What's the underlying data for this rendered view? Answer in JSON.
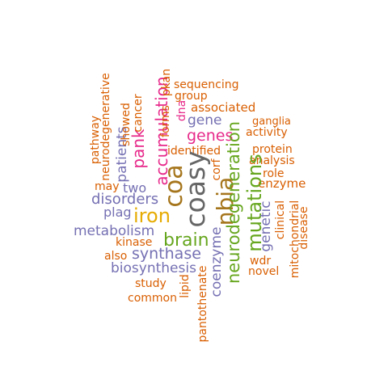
{
  "colors": {
    "orange": "#D95F02",
    "purple": "#7570B3",
    "magenta": "#E7298A",
    "green": "#66A61E",
    "gold": "#E6AB02",
    "brown": "#A6761D",
    "gray": "#666666"
  },
  "words": [
    {
      "text": "sequencing",
      "color": "#D95F02",
      "orientation": "horizontal"
    },
    {
      "text": "group",
      "color": "#D95F02",
      "orientation": "horizontal"
    },
    {
      "text": "associated",
      "color": "#D95F02",
      "orientation": "horizontal"
    },
    {
      "text": "gene",
      "color": "#7570B3",
      "orientation": "horizontal"
    },
    {
      "text": "ganglia",
      "color": "#D95F02",
      "orientation": "horizontal"
    },
    {
      "text": "activity",
      "color": "#D95F02",
      "orientation": "horizontal"
    },
    {
      "text": "genes",
      "color": "#E7298A",
      "orientation": "horizontal"
    },
    {
      "text": "identified",
      "color": "#D95F02",
      "orientation": "horizontal"
    },
    {
      "text": "protein",
      "color": "#D95F02",
      "orientation": "horizontal"
    },
    {
      "text": "analysis",
      "color": "#D95F02",
      "orientation": "horizontal"
    },
    {
      "text": "role",
      "color": "#D95F02",
      "orientation": "horizontal"
    },
    {
      "text": "enzyme",
      "color": "#D95F02",
      "orientation": "horizontal"
    },
    {
      "text": "may",
      "color": "#D95F02",
      "orientation": "horizontal"
    },
    {
      "text": "two",
      "color": "#7570B3",
      "orientation": "horizontal"
    },
    {
      "text": "disorders",
      "color": "#7570B3",
      "orientation": "horizontal"
    },
    {
      "text": "plag",
      "color": "#7570B3",
      "orientation": "horizontal"
    },
    {
      "text": "iron",
      "color": "#E6AB02",
      "orientation": "horizontal"
    },
    {
      "text": "metabolism",
      "color": "#7570B3",
      "orientation": "horizontal"
    },
    {
      "text": "kinase",
      "color": "#D95F02",
      "orientation": "horizontal"
    },
    {
      "text": "brain",
      "color": "#66A61E",
      "orientation": "horizontal"
    },
    {
      "text": "also",
      "color": "#D95F02",
      "orientation": "horizontal"
    },
    {
      "text": "synthase",
      "color": "#7570B3",
      "orientation": "horizontal"
    },
    {
      "text": "biosynthesis",
      "color": "#7570B3",
      "orientation": "horizontal"
    },
    {
      "text": "study",
      "color": "#D95F02",
      "orientation": "horizontal"
    },
    {
      "text": "common",
      "color": "#D95F02",
      "orientation": "horizontal"
    },
    {
      "text": "wdr",
      "color": "#D95F02",
      "orientation": "horizontal"
    },
    {
      "text": "novel",
      "color": "#D95F02",
      "orientation": "horizontal"
    },
    {
      "text": "pathway",
      "color": "#D95F02",
      "orientation": "vertical"
    },
    {
      "text": "neurodegenerative",
      "color": "#D95F02",
      "orientation": "vertical"
    },
    {
      "text": "patients",
      "color": "#7570B3",
      "orientation": "vertical"
    },
    {
      "text": "showed",
      "color": "#D95F02",
      "orientation": "vertical"
    },
    {
      "text": "pank",
      "color": "#E7298A",
      "orientation": "vertical"
    },
    {
      "text": "cancer",
      "color": "#D95F02",
      "orientation": "vertical"
    },
    {
      "text": "accumulation",
      "color": "#E7298A",
      "orientation": "vertical"
    },
    {
      "text": "forms",
      "color": "#D95F02",
      "orientation": "vertical"
    },
    {
      "text": "pkan",
      "color": "#D95F02",
      "orientation": "vertical"
    },
    {
      "text": "dna",
      "color": "#E7298A",
      "orientation": "vertical"
    },
    {
      "text": "coa",
      "color": "#A6761D",
      "orientation": "vertical"
    },
    {
      "text": "coasy",
      "color": "#666666",
      "orientation": "vertical"
    },
    {
      "text": "corf",
      "color": "#D95F02",
      "orientation": "vertical"
    },
    {
      "text": "nbia",
      "color": "#A6761D",
      "orientation": "vertical"
    },
    {
      "text": "neurodegeneration",
      "color": "#66A61E",
      "orientation": "vertical"
    },
    {
      "text": "mutations",
      "color": "#66A61E",
      "orientation": "vertical"
    },
    {
      "text": "coenzyme",
      "color": "#7570B3",
      "orientation": "vertical"
    },
    {
      "text": "genetic",
      "color": "#7570B3",
      "orientation": "vertical"
    },
    {
      "text": "clinical",
      "color": "#D95F02",
      "orientation": "vertical"
    },
    {
      "text": "mitochondrial",
      "color": "#D95F02",
      "orientation": "vertical"
    },
    {
      "text": "disease",
      "color": "#D95F02",
      "orientation": "vertical"
    },
    {
      "text": "lipid",
      "color": "#D95F02",
      "orientation": "vertical"
    },
    {
      "text": "pantothenate",
      "color": "#D95F02",
      "orientation": "vertical"
    }
  ]
}
